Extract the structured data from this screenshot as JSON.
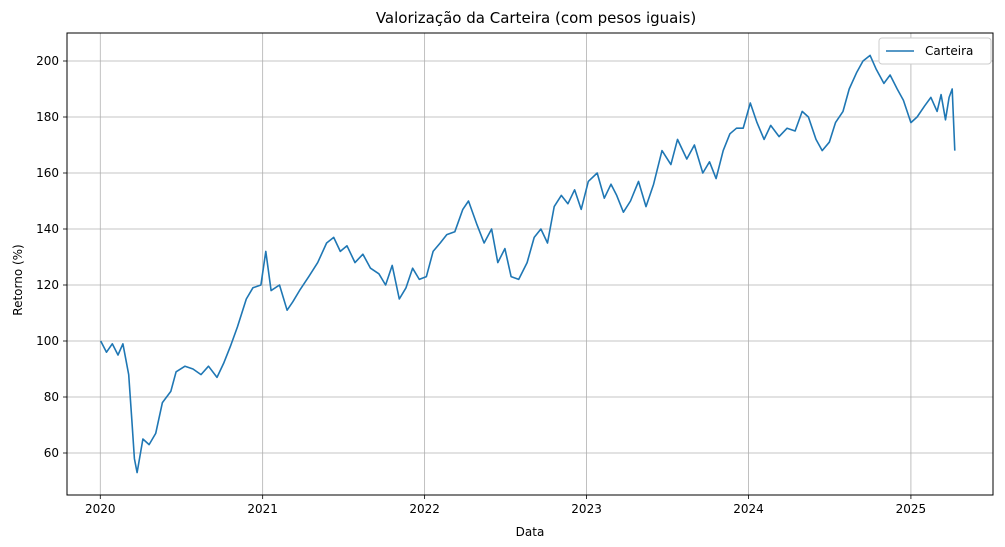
{
  "chart_data": {
    "type": "line",
    "title": "Valorização da Carteira (com pesos iguais)",
    "xlabel": "Data",
    "ylabel": "Retorno (%)",
    "xlim": [
      "2019-10-18",
      "2025-07-05"
    ],
    "ylim": [
      45,
      210
    ],
    "xticks": [
      "2020",
      "2021",
      "2022",
      "2023",
      "2024",
      "2025"
    ],
    "yticks": [
      60,
      80,
      100,
      120,
      140,
      160,
      180,
      200
    ],
    "grid": true,
    "legend_position": "top-right",
    "line_color": "#1f77b4",
    "series": [
      {
        "name": "Carteira",
        "x": [
          "2020-01-02",
          "2020-01-15",
          "2020-01-28",
          "2020-02-10",
          "2020-02-21",
          "2020-03-05",
          "2020-03-12",
          "2020-03-18",
          "2020-03-24",
          "2020-04-06",
          "2020-04-20",
          "2020-05-05",
          "2020-05-20",
          "2020-06-08",
          "2020-06-20",
          "2020-07-10",
          "2020-07-28",
          "2020-08-15",
          "2020-09-01",
          "2020-09-20",
          "2020-10-05",
          "2020-10-20",
          "2020-11-05",
          "2020-11-25",
          "2020-12-10",
          "2020-12-28",
          "2021-01-08",
          "2021-01-20",
          "2021-02-08",
          "2021-02-25",
          "2021-03-10",
          "2021-03-25",
          "2021-04-15",
          "2021-05-05",
          "2021-05-25",
          "2021-06-10",
          "2021-06-25",
          "2021-07-10",
          "2021-07-28",
          "2021-08-15",
          "2021-09-01",
          "2021-09-20",
          "2021-10-05",
          "2021-10-20",
          "2021-11-05",
          "2021-11-20",
          "2021-12-05",
          "2021-12-20",
          "2022-01-05",
          "2022-01-20",
          "2022-02-05",
          "2022-02-20",
          "2022-03-10",
          "2022-03-28",
          "2022-04-10",
          "2022-04-28",
          "2022-05-15",
          "2022-06-01",
          "2022-06-15",
          "2022-07-01",
          "2022-07-15",
          "2022-08-01",
          "2022-08-20",
          "2022-09-05",
          "2022-09-20",
          "2022-10-05",
          "2022-10-20",
          "2022-11-05",
          "2022-11-20",
          "2022-12-05",
          "2022-12-20",
          "2023-01-05",
          "2023-01-25",
          "2023-02-10",
          "2023-02-25",
          "2023-03-10",
          "2023-03-25",
          "2023-04-10",
          "2023-04-28",
          "2023-05-15",
          "2023-06-01",
          "2023-06-20",
          "2023-07-10",
          "2023-07-25",
          "2023-08-15",
          "2023-09-01",
          "2023-09-20",
          "2023-10-05",
          "2023-10-20",
          "2023-11-05",
          "2023-11-20",
          "2023-12-05",
          "2023-12-20",
          "2024-01-05",
          "2024-01-20",
          "2024-02-05",
          "2024-02-20",
          "2024-03-10",
          "2024-03-28",
          "2024-04-15",
          "2024-05-01",
          "2024-05-15",
          "2024-06-01",
          "2024-06-15",
          "2024-07-01",
          "2024-07-15",
          "2024-08-01",
          "2024-08-15",
          "2024-09-01",
          "2024-09-15",
          "2024-10-01",
          "2024-10-15",
          "2024-11-01",
          "2024-11-15",
          "2024-12-01",
          "2024-12-15",
          "2025-01-01",
          "2025-01-15",
          "2025-02-01",
          "2025-02-15",
          "2025-03-01",
          "2025-03-10",
          "2025-03-20",
          "2025-03-28",
          "2025-04-04",
          "2025-04-10"
        ],
        "values": [
          100,
          96,
          99,
          95,
          99,
          88,
          72,
          58,
          53,
          65,
          63,
          67,
          78,
          82,
          89,
          91,
          90,
          88,
          91,
          87,
          92,
          98,
          105,
          115,
          119,
          120,
          132,
          118,
          120,
          111,
          114,
          118,
          123,
          128,
          135,
          137,
          132,
          134,
          128,
          131,
          126,
          124,
          120,
          127,
          115,
          119,
          126,
          122,
          123,
          132,
          135,
          138,
          139,
          147,
          150,
          142,
          135,
          140,
          128,
          133,
          123,
          122,
          128,
          137,
          140,
          135,
          148,
          152,
          149,
          154,
          147,
          157,
          160,
          151,
          156,
          152,
          146,
          150,
          157,
          148,
          156,
          168,
          163,
          172,
          165,
          170,
          160,
          164,
          158,
          168,
          174,
          176,
          176,
          185,
          178,
          172,
          177,
          173,
          176,
          175,
          182,
          180,
          172,
          168,
          171,
          178,
          182,
          190,
          196,
          200,
          202,
          197,
          192,
          195,
          190,
          186,
          178,
          180,
          184,
          187,
          182,
          188,
          179,
          187,
          190,
          168
        ]
      }
    ]
  }
}
